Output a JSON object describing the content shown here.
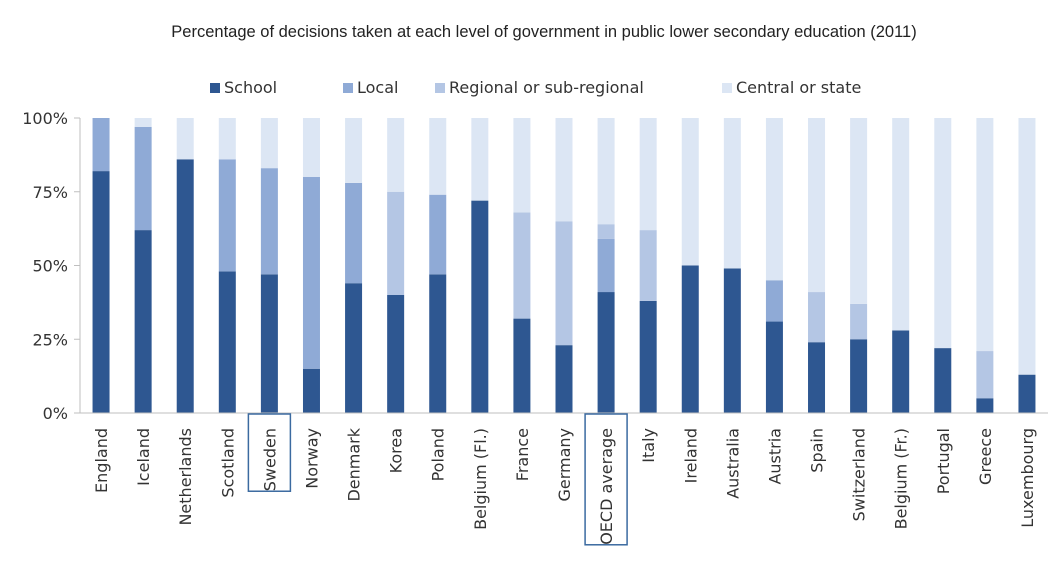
{
  "chart_data": {
    "type": "bar",
    "stacked": true,
    "title": "Percentage of decisions taken at each level of government in public lower secondary education (2011)",
    "xlabel": "",
    "ylabel": "",
    "ylim": [
      0,
      100
    ],
    "yticks": [
      "0%",
      "25%",
      "50%",
      "75%",
      "100%"
    ],
    "legend_position": "top",
    "grid": false,
    "categories": [
      "England",
      "Iceland",
      "Netherlands",
      "Scotland",
      "Sweden",
      "Norway",
      "Denmark",
      "Korea",
      "Poland",
      "Belgium (Fl.)",
      "France",
      "Germany",
      "OECD average",
      "Italy",
      "Ireland",
      "Australia",
      "Austria",
      "Spain",
      "Switzerland",
      "Belgium (Fr.)",
      "Portugal",
      "Greece",
      "Luxembourg"
    ],
    "highlighted_categories": [
      "Sweden",
      "OECD average"
    ],
    "series": [
      {
        "name": "School",
        "color": "#2e5791",
        "values": [
          82,
          62,
          86,
          48,
          47,
          15,
          44,
          40,
          47,
          72,
          32,
          23,
          41,
          38,
          50,
          49,
          31,
          24,
          25,
          28,
          22,
          5,
          13
        ]
      },
      {
        "name": "Local",
        "color": "#8faad6",
        "values": [
          18,
          35,
          0,
          38,
          36,
          65,
          34,
          0,
          27,
          0,
          0,
          0,
          18,
          0,
          0,
          0,
          14,
          0,
          0,
          0,
          0,
          0,
          0
        ]
      },
      {
        "name": "Regional or sub-regional",
        "color": "#b4c6e4",
        "values": [
          0,
          0,
          0,
          0,
          0,
          0,
          0,
          35,
          0,
          0,
          36,
          42,
          5,
          24,
          0,
          0,
          0,
          17,
          12,
          0,
          0,
          16,
          0
        ]
      },
      {
        "name": "Central or state",
        "color": "#dce6f4",
        "values": [
          0,
          3,
          14,
          14,
          17,
          20,
          22,
          25,
          26,
          28,
          32,
          35,
          36,
          38,
          50,
          51,
          55,
          59,
          63,
          72,
          78,
          79,
          87
        ]
      }
    ]
  }
}
